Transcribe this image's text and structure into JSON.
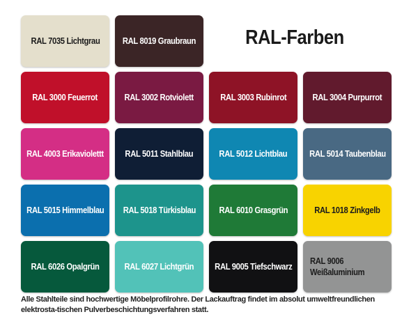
{
  "title": "RAL-Farben",
  "swatches": [
    {
      "label": "RAL 7035 Lichtgrau",
      "color": "#e4dfcc",
      "text_color": "#1c1c1c"
    },
    {
      "label": "RAL 8019 Graubraun",
      "color": "#3b2526",
      "text_color": "#ffffff"
    },
    {
      "label": "RAL 3000 Feuerrot",
      "color": "#c0102a",
      "text_color": "#ffffff"
    },
    {
      "label": "RAL 3002 Rotviolett",
      "color": "#7a1a42",
      "text_color": "#ffffff"
    },
    {
      "label": "RAL 3003 Rubinrot",
      "color": "#8e1326",
      "text_color": "#ffffff"
    },
    {
      "label": "RAL 3004 Purpurrot",
      "color": "#611a2d",
      "text_color": "#ffffff"
    },
    {
      "label": "RAL 4003 Erikaviolettt",
      "color": "#d42e85",
      "text_color": "#ffffff"
    },
    {
      "label": "RAL 5011 Stahlblau",
      "color": "#0f1e35",
      "text_color": "#ffffff"
    },
    {
      "label": "RAL 5012 Lichtblau",
      "color": "#0f87b2",
      "text_color": "#ffffff"
    },
    {
      "label": "RAL 5014 Taubenblau",
      "color": "#496983",
      "text_color": "#ffffff"
    },
    {
      "label": "RAL 5015 Himmelblau",
      "color": "#0b6fae",
      "text_color": "#ffffff"
    },
    {
      "label": "RAL 5018 Türkisblau",
      "color": "#1d948c",
      "text_color": "#ffffff"
    },
    {
      "label": "RAL 6010 Grasgrün",
      "color": "#1f7a37",
      "text_color": "#ffffff"
    },
    {
      "label": "RAL 1018 Zinkgelb",
      "color": "#f8d300",
      "text_color": "#1c1c1c"
    },
    {
      "label": "RAL 6026 Opalgrün",
      "color": "#06593c",
      "text_color": "#ffffff"
    },
    {
      "label": "RAL 6027 Lichtgrün",
      "color": "#52c2b8",
      "text_color": "#ffffff"
    },
    {
      "label": "RAL 9005 Tiefschwarz",
      "color": "#111113",
      "text_color": "#ffffff"
    },
    {
      "label": "RAL 9006 Weißaluminium",
      "color": "#939494",
      "text_color": "#1c1c1c"
    }
  ],
  "footnote": "Alle Stahlteile sind hochwertige Möbelprofilrohre. Der Lackauftrag findet im absolut umweltfreundlichen elektrosta-tischen Pulverbeschichtungsverfahren statt."
}
